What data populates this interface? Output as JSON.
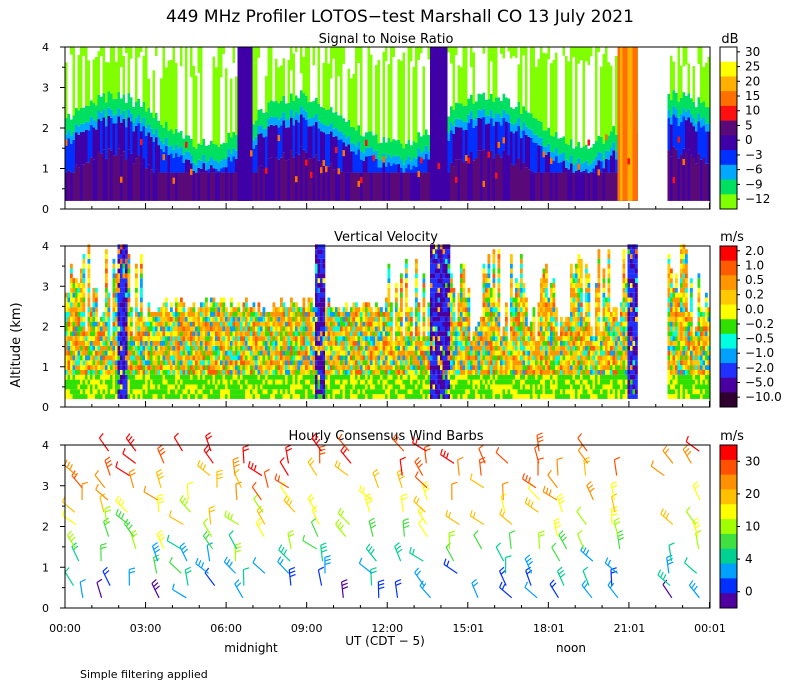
{
  "title": "449 MHz Profiler LOTOS−test Marshall CO 13 July 2021",
  "ylabel": "Altitude (km)",
  "xlabel": "UT  (CDT − 5)",
  "x_tick_labels": [
    "00:00",
    "03:00",
    "06:00",
    "09:00",
    "12:00",
    "15:01",
    "18:01",
    "21:01",
    "00:01"
  ],
  "y_tick_labels": [
    "0",
    "1",
    "2",
    "3",
    "4"
  ],
  "local_time_labels": {
    "midnight": "midnight",
    "noon": "noon"
  },
  "footnote": "Simple filtering applied",
  "chart_data": [
    {
      "type": "heatmap",
      "title": "Signal to Noise Ratio",
      "units": "dB",
      "xlim_hours": [
        0,
        24.02
      ],
      "ylim_km": [
        0,
        4
      ],
      "colorbar_labels": [
        "30",
        "25",
        "20",
        "15",
        "10",
        "5",
        "0",
        "−3",
        "−6",
        "−9",
        "−12"
      ],
      "colorbar_colors": [
        "#ffffff",
        "#ffff00",
        "#ffb000",
        "#ff7000",
        "#ff1010",
        "#5a0a78",
        "#4000a8",
        "#0030ff",
        "#00a8ff",
        "#00e060",
        "#80ff00"
      ],
      "data_gaps_hours": [
        [
          21.3,
          22.4
        ]
      ]
    },
    {
      "type": "heatmap",
      "title": "Vertical Velocity",
      "units": "m/s",
      "xlim_hours": [
        0,
        24.02
      ],
      "ylim_km": [
        0,
        4
      ],
      "colorbar_labels": [
        "2.0",
        "1.0",
        "0.5",
        "0.2",
        "0.0",
        "−0.2",
        "−0.5",
        "−1.0",
        "−2.0",
        "−5.0",
        "−10.0"
      ],
      "colorbar_colors": [
        "#ff0000",
        "#ff5a00",
        "#ff9600",
        "#ffc800",
        "#ffff00",
        "#30e000",
        "#00ffe0",
        "#00a0ff",
        "#2030ff",
        "#4a00a0",
        "#300030"
      ],
      "data_gaps_hours": [
        [
          21.3,
          22.4
        ]
      ]
    },
    {
      "type": "scatter",
      "title": "Hourly Consensus Wind Barbs",
      "units": "m/s",
      "xlim_hours": [
        0,
        24.02
      ],
      "ylim_km": [
        0,
        4
      ],
      "colorbar_labels": [
        "30",
        "20",
        "10",
        "4",
        "0"
      ],
      "colorbar_colors": [
        "#ff0000",
        "#ff5000",
        "#ff9000",
        "#ffc000",
        "#ffff00",
        "#a0ff00",
        "#40e040",
        "#00d090",
        "#00a0ff",
        "#0030ff",
        "#5000a0"
      ],
      "barb_hours": [
        0.5,
        1.5,
        2.5,
        3.5,
        4.5,
        5.5,
        6.5,
        7.5,
        8.5,
        9.5,
        10.5,
        11.5,
        12.5,
        13.5,
        14.5,
        15.5,
        16.5,
        17.5,
        18.5,
        19.5,
        20.5,
        21.5,
        22.5,
        23.5
      ]
    }
  ]
}
